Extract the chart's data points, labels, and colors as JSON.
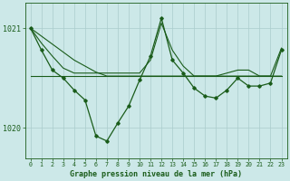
{
  "title": "Graphe pression niveau de la mer (hPa)",
  "bg_color": "#cce8e8",
  "grid_color": "#aacccc",
  "line_color": "#1a5c1a",
  "x_labels": [
    "0",
    "1",
    "2",
    "3",
    "4",
    "5",
    "6",
    "7",
    "8",
    "9",
    "10",
    "11",
    "12",
    "13",
    "14",
    "15",
    "16",
    "17",
    "18",
    "19",
    "20",
    "21",
    "22",
    "23"
  ],
  "ylim": [
    1019.7,
    1021.25
  ],
  "yticks": [
    1020,
    1021
  ],
  "xlim": [
    -0.5,
    23.5
  ],
  "series_flat": [
    1020.52,
    1020.52,
    1020.52,
    1020.52,
    1020.52,
    1020.52,
    1020.52,
    1020.52,
    1020.52,
    1020.52,
    1020.52,
    1020.52,
    1020.52,
    1020.52,
    1020.52,
    1020.52,
    1020.52,
    1020.52,
    1020.52,
    1020.52,
    1020.52,
    1020.52,
    1020.52,
    1020.52
  ],
  "series_sloped": [
    1021.0,
    1020.92,
    1020.84,
    1020.76,
    1020.68,
    1020.62,
    1020.56,
    1020.52,
    1020.52,
    1020.52,
    1020.52,
    1020.52,
    1020.52,
    1020.52,
    1020.52,
    1020.52,
    1020.52,
    1020.52,
    1020.52,
    1020.52,
    1020.52,
    1020.52,
    1020.52,
    1020.52
  ],
  "series_main_x": [
    0,
    1,
    2,
    3,
    4,
    5,
    6,
    7,
    8,
    9,
    10,
    11,
    12,
    13,
    14,
    15,
    16,
    17,
    18,
    19,
    20,
    21,
    22,
    23
  ],
  "series_main_y": [
    1021.0,
    1020.78,
    1020.58,
    1020.5,
    1020.38,
    1020.28,
    1019.92,
    1019.87,
    1020.05,
    1020.22,
    1020.48,
    1020.72,
    1021.1,
    1020.68,
    1020.55,
    1020.4,
    1020.32,
    1020.3,
    1020.38,
    1020.5,
    1020.42,
    1020.42,
    1020.45,
    1020.78
  ],
  "series_upper_x": [
    0,
    1,
    2,
    3,
    4,
    10,
    11,
    12,
    13,
    14,
    15,
    16,
    17,
    18,
    19,
    20,
    21,
    22,
    23
  ],
  "series_upper_y": [
    1021.0,
    1020.85,
    1020.72,
    1020.6,
    1020.55,
    1020.55,
    1020.68,
    1021.05,
    1020.78,
    1020.62,
    1020.52,
    1020.52,
    1020.52,
    1020.55,
    1020.58,
    1020.58,
    1020.52,
    1020.52,
    1020.8
  ]
}
